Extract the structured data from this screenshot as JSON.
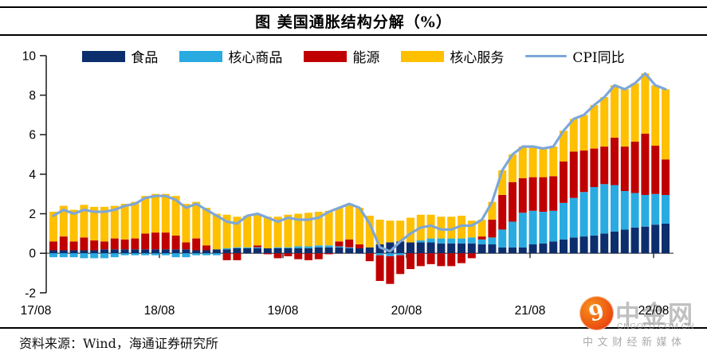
{
  "title": "图 美国通胀结构分解（%）",
  "source_note": "资料来源：Wind，海通证券研究所",
  "watermark": {
    "brand": "中金网",
    "domain": "CNGOLD.COM.CN",
    "tagline": "中文财经新媒体",
    "logo_glyph": "9",
    "logo_color": "#e8420f"
  },
  "chart_data": {
    "type": "bar",
    "subtype": "stacked-bar-with-line",
    "title": "图 美国通胀结构分解（%）",
    "x_start": "2017-08",
    "x_end": "2022-08",
    "x_frequency": "monthly",
    "x_tick_indices": [
      0,
      12,
      24,
      36,
      48,
      60
    ],
    "x_tick_labels": [
      "17/08",
      "18/08",
      "19/08",
      "20/08",
      "21/08",
      "22/08"
    ],
    "ylim": [
      -2,
      10
    ],
    "yticks": [
      -2,
      0,
      2,
      4,
      6,
      8,
      10
    ],
    "grid": false,
    "legend_position": "top",
    "axis_color": "#1a1a1a",
    "zero_line_color": "#595959",
    "bar_series": [
      {
        "name": "食品",
        "color": "#0d2e6d",
        "values": [
          0.15,
          0.15,
          0.15,
          0.15,
          0.15,
          0.2,
          0.2,
          0.2,
          0.2,
          0.2,
          0.2,
          0.2,
          0.2,
          0.2,
          0.15,
          0.15,
          0.2,
          0.2,
          0.25,
          0.25,
          0.25,
          0.25,
          0.25,
          0.25,
          0.25,
          0.25,
          0.3,
          0.3,
          0.3,
          0.25,
          0.25,
          0.3,
          0.45,
          0.55,
          0.6,
          0.55,
          0.55,
          0.55,
          0.5,
          0.5,
          0.5,
          0.5,
          0.45,
          0.45,
          0.3,
          0.3,
          0.3,
          0.45,
          0.5,
          0.6,
          0.7,
          0.8,
          0.85,
          0.9,
          1.0,
          1.1,
          1.2,
          1.3,
          1.35,
          1.45,
          1.5
        ]
      },
      {
        "name": "核心商品",
        "color": "#29abe2",
        "values": [
          -0.2,
          -0.2,
          -0.2,
          -0.25,
          -0.25,
          -0.25,
          -0.2,
          -0.1,
          -0.1,
          -0.1,
          -0.1,
          -0.1,
          -0.2,
          -0.2,
          -0.1,
          -0.1,
          -0.1,
          0.05,
          0.05,
          0.05,
          0.05,
          0.0,
          0.05,
          0.05,
          0.1,
          0.1,
          0.1,
          0.1,
          0.05,
          0.05,
          0.0,
          0.0,
          -0.1,
          -0.15,
          -0.1,
          0.0,
          0.1,
          0.2,
          0.25,
          0.25,
          0.25,
          0.3,
          0.25,
          0.35,
          0.9,
          1.3,
          1.75,
          1.7,
          1.6,
          1.55,
          1.85,
          2.0,
          2.25,
          2.45,
          2.5,
          2.35,
          1.95,
          1.75,
          1.6,
          1.55,
          1.45
        ]
      },
      {
        "name": "能源",
        "color": "#c00000",
        "values": [
          0.45,
          0.7,
          0.45,
          0.65,
          0.5,
          0.4,
          0.55,
          0.5,
          0.55,
          0.8,
          0.85,
          0.85,
          0.7,
          0.35,
          0.6,
          0.25,
          0.0,
          -0.35,
          -0.35,
          0.0,
          0.1,
          -0.05,
          -0.25,
          -0.15,
          -0.3,
          -0.35,
          -0.3,
          -0.05,
          0.25,
          0.4,
          0.2,
          -0.4,
          -1.3,
          -1.4,
          -0.95,
          -0.8,
          -0.65,
          -0.55,
          -0.65,
          -0.65,
          -0.5,
          -0.25,
          0.15,
          0.9,
          1.75,
          2.0,
          1.75,
          1.7,
          1.75,
          1.75,
          2.1,
          2.35,
          2.1,
          1.95,
          1.9,
          2.4,
          2.25,
          2.6,
          3.1,
          2.45,
          1.8
        ]
      },
      {
        "name": "核心服务",
        "color": "#ffc000",
        "values": [
          1.5,
          1.55,
          1.6,
          1.65,
          1.7,
          1.75,
          1.65,
          1.8,
          1.85,
          1.9,
          1.95,
          1.95,
          2.0,
          1.95,
          1.85,
          1.9,
          1.8,
          1.7,
          1.55,
          1.6,
          1.6,
          1.6,
          1.55,
          1.65,
          1.65,
          1.7,
          1.7,
          1.75,
          1.7,
          1.8,
          1.85,
          1.6,
          1.25,
          1.1,
          1.05,
          1.25,
          1.3,
          1.2,
          1.1,
          1.1,
          1.15,
          0.85,
          0.85,
          0.9,
          1.25,
          1.4,
          1.6,
          1.55,
          1.45,
          1.5,
          1.55,
          1.65,
          1.8,
          2.2,
          2.5,
          2.65,
          2.9,
          2.95,
          3.05,
          3.05,
          3.55
        ]
      }
    ],
    "line_series": {
      "name": "CPI同比",
      "color": "#7da7d9",
      "values": [
        1.9,
        2.2,
        2.0,
        2.2,
        2.1,
        2.1,
        2.2,
        2.4,
        2.5,
        2.8,
        2.9,
        2.9,
        2.7,
        2.3,
        2.5,
        2.2,
        1.9,
        1.6,
        1.5,
        1.9,
        2.0,
        1.8,
        1.6,
        1.8,
        1.7,
        1.7,
        1.8,
        2.1,
        2.3,
        2.5,
        2.3,
        1.5,
        0.3,
        0.1,
        0.6,
        1.0,
        1.3,
        1.4,
        1.2,
        1.2,
        1.4,
        1.4,
        1.7,
        2.6,
        4.2,
        5.0,
        5.4,
        5.4,
        5.3,
        5.4,
        6.2,
        6.8,
        7.0,
        7.5,
        7.9,
        8.5,
        8.3,
        8.6,
        9.1,
        8.5,
        8.3
      ]
    }
  }
}
